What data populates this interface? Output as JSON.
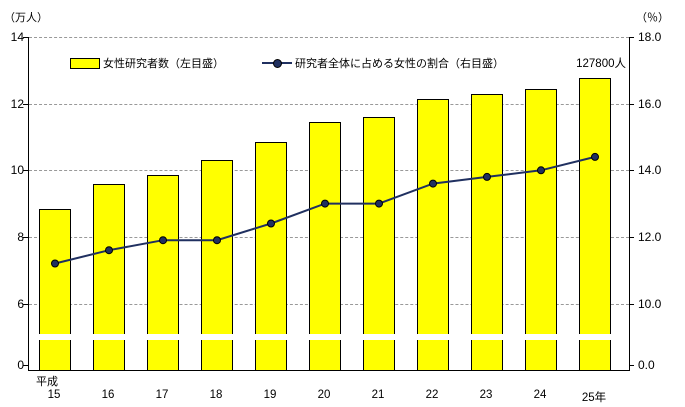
{
  "chart_data": {
    "type": "combo",
    "categories": [
      "15",
      "16",
      "17",
      "18",
      "19",
      "20",
      "21",
      "22",
      "23",
      "24",
      "25"
    ],
    "category_era_prefix": "平成",
    "category_last_suffix": "年",
    "series": [
      {
        "name": "女性研究者数（左目盛）",
        "type": "bar",
        "axis": "left",
        "unit": "万人",
        "values": [
          8.85,
          9.6,
          9.85,
          10.3,
          10.85,
          11.45,
          11.6,
          12.15,
          12.3,
          12.45,
          12.78
        ]
      },
      {
        "name": "研究者全体に占める女性の割合（右目盛）",
        "type": "line",
        "axis": "right",
        "unit": "%",
        "values": [
          11.2,
          11.6,
          11.9,
          11.9,
          12.4,
          13.0,
          13.0,
          13.6,
          13.8,
          14.0,
          14.4
        ]
      }
    ],
    "left_axis": {
      "label": "（万人）",
      "ticks": [
        0,
        6,
        8,
        10,
        12,
        14
      ],
      "ylim": [
        0,
        14
      ],
      "break_between": [
        0,
        6
      ]
    },
    "right_axis": {
      "label": "（％）",
      "ticks": [
        0.0,
        10.0,
        12.0,
        14.0,
        16.0,
        18.0
      ],
      "ylim": [
        0,
        18
      ],
      "break_between": [
        0,
        10
      ]
    },
    "grid": "horizontal-dashed",
    "legend_position": "top-inside",
    "annotation": "127800人"
  },
  "axes": {
    "left": {
      "unit_label": "（万人）",
      "tick_labels": [
        "14",
        "12",
        "10",
        "8",
        "6",
        "0"
      ],
      "tick_values": [
        14,
        12,
        10,
        8,
        6,
        0
      ],
      "max": 14
    },
    "right": {
      "unit_label": "（％）",
      "tick_labels": [
        "18.0",
        "16.0",
        "14.0",
        "12.0",
        "10.0",
        "0.0"
      ],
      "tick_values": [
        18,
        16,
        14,
        12,
        10,
        0
      ],
      "max": 18
    },
    "x": {
      "era_label": "平成",
      "tick_labels": [
        "15",
        "16",
        "17",
        "18",
        "19",
        "20",
        "21",
        "22",
        "23",
        "24",
        "25年"
      ]
    }
  },
  "legend": {
    "bar_label": "女性研究者数（左目盛）",
    "line_label": "研究者全体に占める女性の割合（右目盛）"
  },
  "annotation": {
    "text": "127800人"
  },
  "colors": {
    "bar_fill": "#FFFF00",
    "bar_border": "#000000",
    "line": "#203060",
    "marker_fill": "#203060",
    "marker_border": "#000000",
    "grid": "#999999",
    "axis": "#000000",
    "background": "#FFFFFF",
    "text": "#000000"
  }
}
